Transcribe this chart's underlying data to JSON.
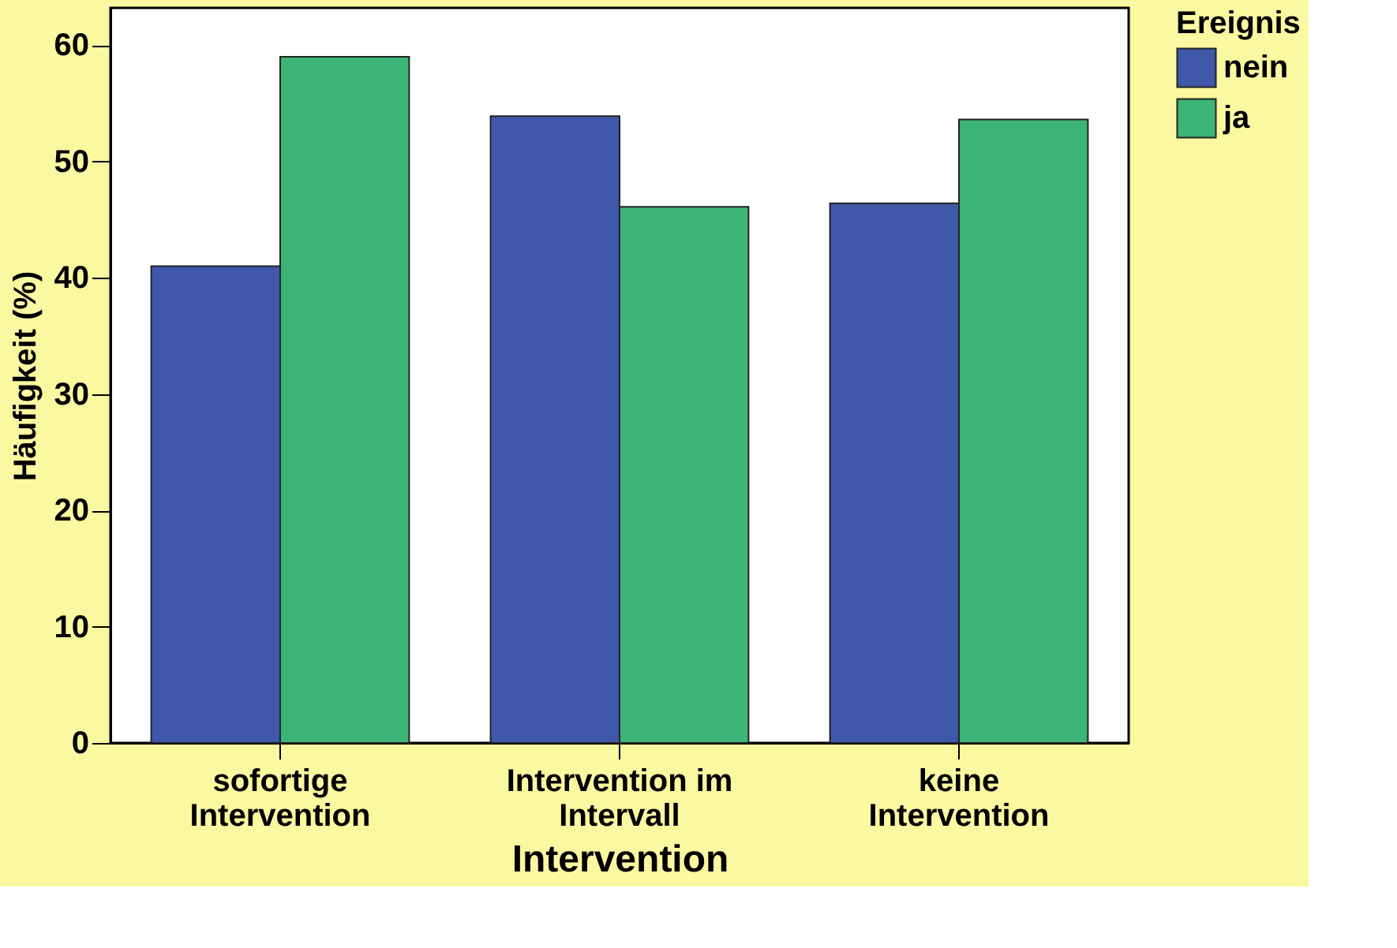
{
  "chart_data": {
    "type": "bar",
    "xlabel": "Intervention",
    "ylabel": "Häufigkeit (%)",
    "legend_title": "Ereignis",
    "categories": [
      "sofortige\nIntervention",
      "Intervention im\nIntervall",
      "keine\nIntervention"
    ],
    "series": [
      {
        "name": "nein",
        "color": "#3f58a9",
        "values": [
          41.0,
          53.9,
          46.4
        ]
      },
      {
        "name": "ja",
        "color": "#3cb475",
        "values": [
          59.0,
          46.1,
          53.6
        ]
      }
    ],
    "ylim": [
      0,
      63.2
    ],
    "yticks": [
      0,
      10,
      20,
      30,
      40,
      50,
      60
    ],
    "grid": false,
    "legend": "right"
  }
}
